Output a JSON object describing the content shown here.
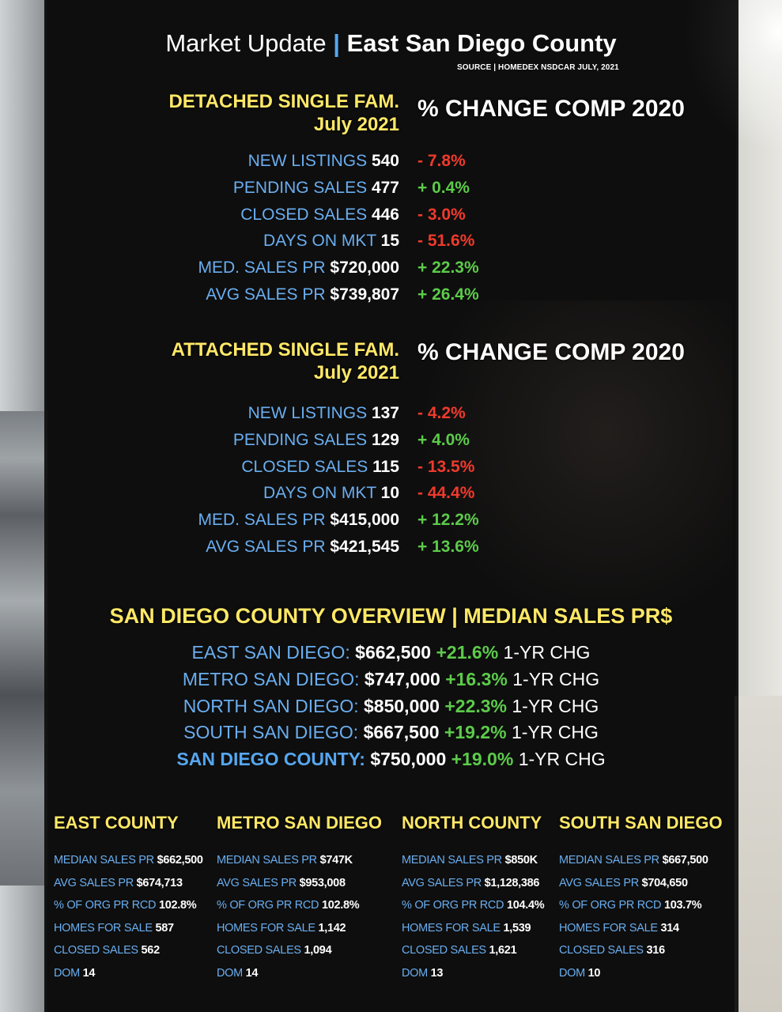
{
  "header": {
    "title_light": "Market Update",
    "title_separator": "|",
    "title_bold": "East San Diego County",
    "source": "SOURCE | HOMEDEX NSDCAR JULY, 2021"
  },
  "detached": {
    "heading_line1": "DETACHED SINGLE FAM.",
    "heading_line2": "July 2021",
    "change_heading": "% CHANGE COMP 2020",
    "rows": [
      {
        "label": "NEW LISTINGS",
        "value": "540",
        "change": "- 7.8%"
      },
      {
        "label": "PENDING SALES",
        "value": "477",
        "change": "+ 0.4%"
      },
      {
        "label": "CLOSED SALES",
        "value": "446",
        "change": "- 3.0%"
      },
      {
        "label": "DAYS ON MKT",
        "value": "15",
        "change": "- 51.6%"
      },
      {
        "label": "MED. SALES PR",
        "value": "$720,000",
        "change": "+ 22.3%"
      },
      {
        "label": "AVG SALES PR",
        "value": "$739,807",
        "change": "+ 26.4%"
      }
    ]
  },
  "attached": {
    "heading_line1": "ATTACHED SINGLE FAM.",
    "heading_line2": "July 2021",
    "change_heading": "% CHANGE COMP 2020",
    "rows": [
      {
        "label": "NEW LISTINGS",
        "value": "137",
        "change": "- 4.2%"
      },
      {
        "label": "PENDING SALES",
        "value": "129",
        "change": "+ 4.0%"
      },
      {
        "label": "CLOSED SALES",
        "value": "115",
        "change": "- 13.5%"
      },
      {
        "label": "DAYS ON MKT",
        "value": "10",
        "change": "- 44.4%"
      },
      {
        "label": "MED. SALES PR",
        "value": "$415,000",
        "change": "+ 12.2%"
      },
      {
        "label": "AVG SALES PR",
        "value": "$421,545",
        "change": "+ 13.6%"
      }
    ]
  },
  "overview": {
    "title": "SAN DIEGO COUNTY OVERVIEW | MEDIAN SALES PR$",
    "rows": [
      {
        "area": "EAST SAN DIEGO:",
        "price": "$662,500",
        "pct": "+21.6%",
        "suffix": "1-YR CHG"
      },
      {
        "area": "METRO SAN DIEGO:",
        "price": "$747,000",
        "pct": "+16.3%",
        "suffix": "1-YR CHG"
      },
      {
        "area": "NORTH SAN DIEGO:",
        "price": "$850,000",
        "pct": "+22.3%",
        "suffix": "1-YR CHG"
      },
      {
        "area": "SOUTH SAN DIEGO:",
        "price": "$667,500",
        "pct": "+19.2%",
        "suffix": "1-YR CHG"
      },
      {
        "area": "SAN DIEGO COUNTY:",
        "price": "$750,000",
        "pct": "+19.0%",
        "suffix": "1-YR CHG"
      }
    ]
  },
  "regions": [
    {
      "title": "EAST COUNTY",
      "stats": [
        {
          "label": "MEDIAN SALES PR",
          "value": "$662,500"
        },
        {
          "label": "AVG SALES PR",
          "value": "$674,713"
        },
        {
          "label": "% OF ORG PR RCD",
          "value": "102.8%"
        },
        {
          "label": "HOMES FOR SALE",
          "value": "587"
        },
        {
          "label": "CLOSED SALES",
          "value": "562"
        },
        {
          "label": "DOM",
          "value": "14"
        }
      ]
    },
    {
      "title": "METRO SAN DIEGO",
      "stats": [
        {
          "label": "MEDIAN SALES PR",
          "value": "$747K"
        },
        {
          "label": "AVG SALES PR",
          "value": "$953,008"
        },
        {
          "label": "% OF ORG PR RCD",
          "value": "102.8%"
        },
        {
          "label": "HOMES FOR SALE",
          "value": "1,142"
        },
        {
          "label": "CLOSED SALES",
          "value": "1,094"
        },
        {
          "label": "DOM",
          "value": "14"
        }
      ]
    },
    {
      "title": "NORTH COUNTY",
      "stats": [
        {
          "label": "MEDIAN SALES PR",
          "value": "$850K"
        },
        {
          "label": "AVG SALES PR",
          "value": "$1,128,386"
        },
        {
          "label": "% OF ORG PR RCD",
          "value": "104.4%"
        },
        {
          "label": "HOMES FOR SALE",
          "value": "1,539"
        },
        {
          "label": "CLOSED SALES",
          "value": "1,621"
        },
        {
          "label": "DOM",
          "value": "13"
        }
      ]
    },
    {
      "title": "SOUTH SAN DIEGO",
      "stats": [
        {
          "label": "MEDIAN SALES PR",
          "value": "$667,500"
        },
        {
          "label": "AVG SALES PR",
          "value": "$704,650"
        },
        {
          "label": "% OF ORG PR RCD",
          "value": "103.7%"
        },
        {
          "label": "HOMES FOR SALE",
          "value": "314"
        },
        {
          "label": "CLOSED SALES",
          "value": "316"
        },
        {
          "label": "DOM",
          "value": "10"
        }
      ]
    }
  ],
  "colors": {
    "heading_yellow": "#ffe866",
    "label_blue": "#6aaef0",
    "accent_blue": "#56a7f0",
    "positive_green": "#5ccb4a",
    "negative_red": "#ef3a2c"
  }
}
